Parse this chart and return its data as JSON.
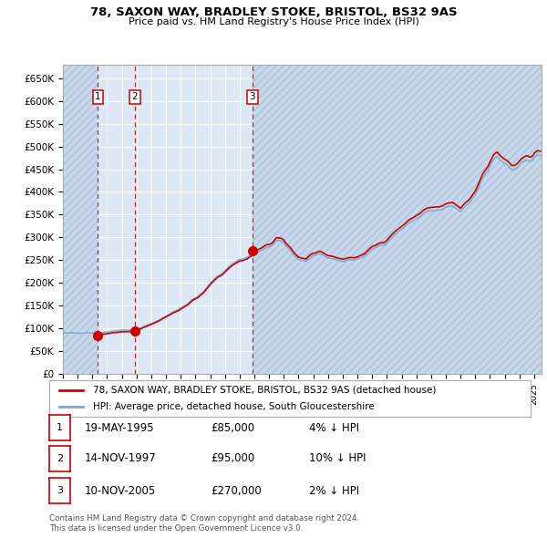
{
  "title1": "78, SAXON WAY, BRADLEY STOKE, BRISTOL, BS32 9AS",
  "title2": "Price paid vs. HM Land Registry's House Price Index (HPI)",
  "ytick_labels": [
    "£0",
    "£50K",
    "£100K",
    "£150K",
    "£200K",
    "£250K",
    "£300K",
    "£350K",
    "£400K",
    "£450K",
    "£500K",
    "£550K",
    "£600K",
    "£650K"
  ],
  "yticks": [
    0,
    50000,
    100000,
    150000,
    200000,
    250000,
    300000,
    350000,
    400000,
    450000,
    500000,
    550000,
    600000,
    650000
  ],
  "xmin": 1993.0,
  "xmax": 2025.5,
  "ymin": 0,
  "ymax": 680000,
  "sale_dates": [
    1995.38,
    1997.87,
    2005.86
  ],
  "sale_prices": [
    85000,
    95000,
    270000
  ],
  "sale_labels": [
    "1",
    "2",
    "3"
  ],
  "hpi_color": "#7aabcf",
  "sale_color": "#cc0000",
  "bg_main": "#dde8f5",
  "bg_hatch": "#c8d8ec",
  "legend_entries": [
    "78, SAXON WAY, BRADLEY STOKE, BRISTOL, BS32 9AS (detached house)",
    "HPI: Average price, detached house, South Gloucestershire"
  ],
  "table_rows": [
    [
      "1",
      "19-MAY-1995",
      "£85,000",
      "4% ↓ HPI"
    ],
    [
      "2",
      "14-NOV-1997",
      "£95,000",
      "10% ↓ HPI"
    ],
    [
      "3",
      "10-NOV-2005",
      "£270,000",
      "2% ↓ HPI"
    ]
  ],
  "footnote1": "Contains HM Land Registry data © Crown copyright and database right 2024.",
  "footnote2": "This data is licensed under the Open Government Licence v3.0."
}
